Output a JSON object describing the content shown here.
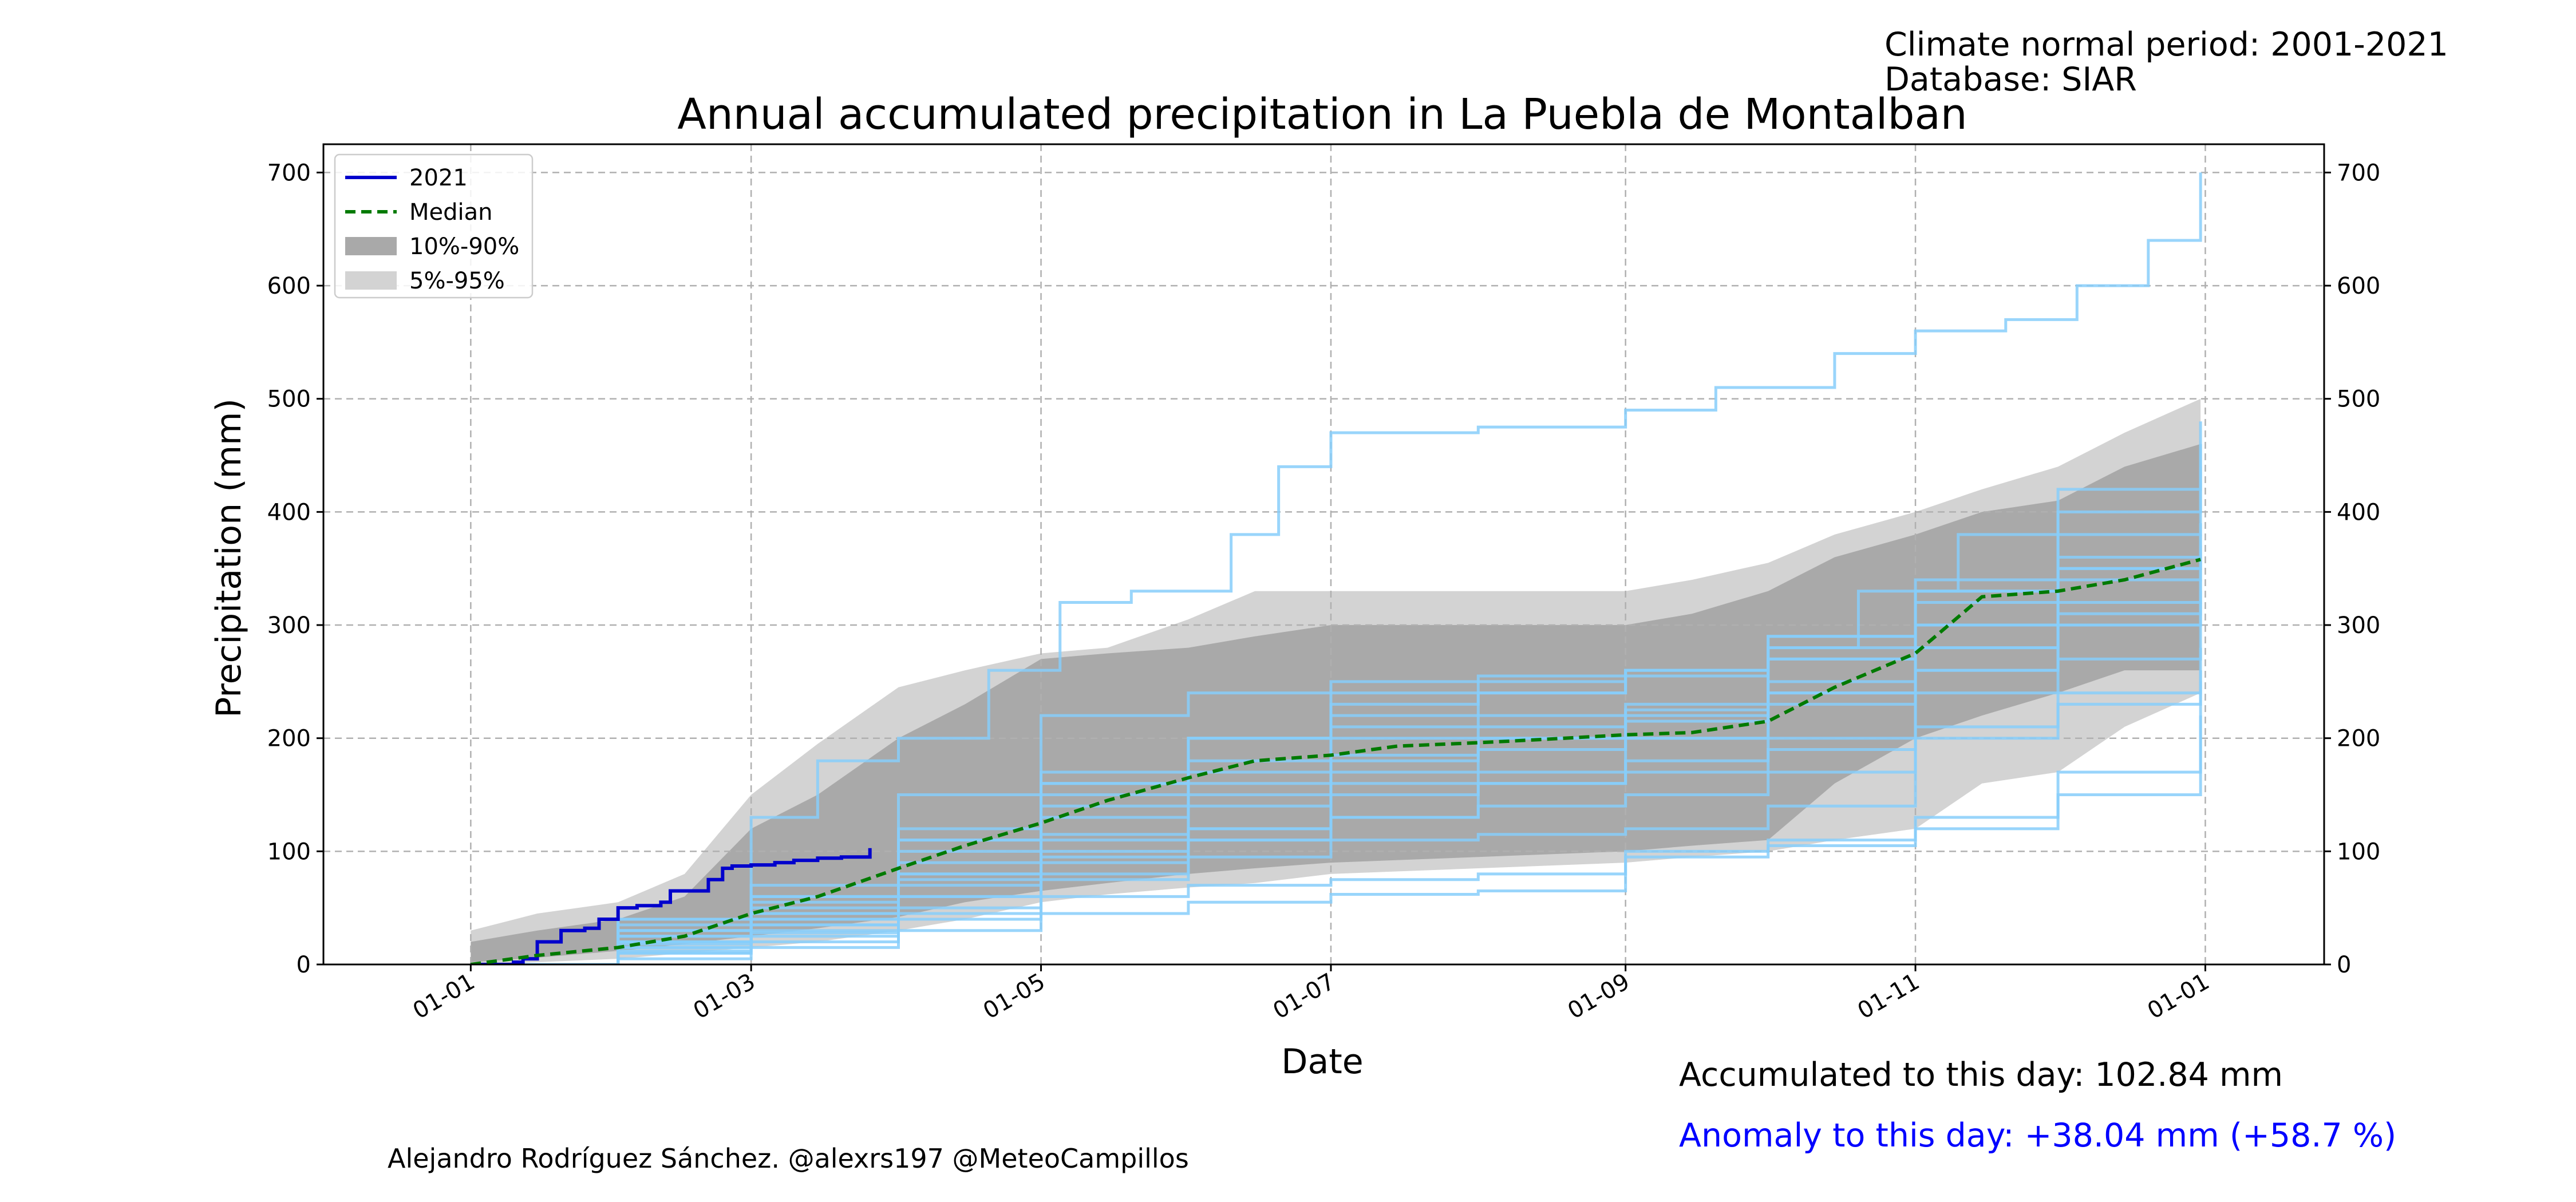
{
  "header": {
    "climate_period": "Climate normal period: 2001-2021",
    "database": "Database: SIAR"
  },
  "footer": {
    "accumulated": "Accumulated to this day: 102.84 mm",
    "anomaly": "Anomaly to this day: +38.04 mm (+58.7 %)",
    "credit": "Alejandro Rodríguez Sánchez. @alexrs197 @MeteoCampillos"
  },
  "colors": {
    "current": "#0000cc",
    "median": "#007a00",
    "band_10_90": "#a9a9a9",
    "band_5_95": "#d3d3d3",
    "years": "#87cefa",
    "anomaly_text": "#0000ff"
  },
  "chart_data": {
    "type": "line",
    "title": "Annual accumulated precipitation in La Puebla de Montalban",
    "xlabel": "Date",
    "ylabel": "Precipitation (mm)",
    "ylim": [
      0,
      725
    ],
    "yticks": [
      0,
      100,
      200,
      300,
      400,
      500,
      600,
      700
    ],
    "xlim": [
      "2020-12-01",
      "2022-01-26"
    ],
    "xticks": [
      {
        "date": "2021-01-01",
        "label": "01-01"
      },
      {
        "date": "2021-03-01",
        "label": "01-03"
      },
      {
        "date": "2021-05-01",
        "label": "01-05"
      },
      {
        "date": "2021-07-01",
        "label": "01-07"
      },
      {
        "date": "2021-09-01",
        "label": "01-09"
      },
      {
        "date": "2021-11-01",
        "label": "01-11"
      },
      {
        "date": "2022-01-01",
        "label": "01-01"
      }
    ],
    "grid": true,
    "legend_position": "top-left",
    "legend": [
      {
        "label": "2021",
        "kind": "line",
        "color": "#0000cc",
        "dash": false
      },
      {
        "label": "Median",
        "kind": "line",
        "color": "#007a00",
        "dash": true
      },
      {
        "label": "10%-90%",
        "kind": "patch",
        "color": "#a9a9a9"
      },
      {
        "label": "5%-95%",
        "kind": "patch",
        "color": "#d3d3d3"
      }
    ],
    "bands": [
      {
        "label": "5%-95%",
        "color": "#d3d3d3",
        "x": [
          "2021-01-01",
          "2021-01-15",
          "2021-02-01",
          "2021-02-15",
          "2021-03-01",
          "2021-03-15",
          "2021-04-01",
          "2021-04-15",
          "2021-05-01",
          "2021-05-15",
          "2021-06-01",
          "2021-06-15",
          "2021-07-01",
          "2021-08-01",
          "2021-09-01",
          "2021-09-15",
          "2021-10-01",
          "2021-10-15",
          "2021-11-01",
          "2021-11-15",
          "2021-12-01",
          "2021-12-15",
          "2021-12-31"
        ],
        "lower": [
          0,
          2,
          5,
          10,
          15,
          20,
          30,
          40,
          55,
          62,
          68,
          72,
          80,
          85,
          90,
          95,
          100,
          110,
          120,
          160,
          170,
          210,
          240
        ],
        "upper": [
          30,
          45,
          55,
          80,
          150,
          195,
          245,
          260,
          275,
          280,
          305,
          330,
          330,
          330,
          330,
          340,
          355,
          380,
          400,
          420,
          440,
          470,
          500
        ]
      },
      {
        "label": "10%-90%",
        "color": "#a9a9a9",
        "x": [
          "2021-01-01",
          "2021-01-15",
          "2021-02-01",
          "2021-02-15",
          "2021-03-01",
          "2021-03-15",
          "2021-04-01",
          "2021-04-15",
          "2021-05-01",
          "2021-05-15",
          "2021-06-01",
          "2021-06-15",
          "2021-07-01",
          "2021-08-01",
          "2021-09-01",
          "2021-09-15",
          "2021-10-01",
          "2021-10-15",
          "2021-11-01",
          "2021-11-15",
          "2021-12-01",
          "2021-12-15",
          "2021-12-31"
        ],
        "lower": [
          2,
          6,
          12,
          18,
          25,
          32,
          42,
          55,
          65,
          72,
          80,
          85,
          90,
          95,
          100,
          105,
          110,
          160,
          200,
          220,
          240,
          260,
          260
        ],
        "upper": [
          20,
          30,
          40,
          60,
          120,
          150,
          200,
          230,
          270,
          275,
          280,
          290,
          300,
          300,
          300,
          310,
          330,
          360,
          380,
          400,
          410,
          440,
          460
        ]
      }
    ],
    "series": [
      {
        "name": "2021",
        "color": "#0000cc",
        "dash": false,
        "x": [
          "2021-01-01",
          "2021-01-10",
          "2021-01-12",
          "2021-01-15",
          "2021-01-20",
          "2021-01-25",
          "2021-01-28",
          "2021-02-01",
          "2021-02-05",
          "2021-02-10",
          "2021-02-12",
          "2021-02-20",
          "2021-02-23",
          "2021-02-25",
          "2021-03-01",
          "2021-03-06",
          "2021-03-10",
          "2021-03-15",
          "2021-03-20",
          "2021-03-26"
        ],
        "y": [
          0,
          2,
          5,
          20,
          30,
          32,
          40,
          50,
          52,
          55,
          65,
          75,
          85,
          87,
          88,
          90,
          92,
          94,
          95,
          102.84
        ]
      },
      {
        "name": "Median",
        "color": "#007a00",
        "dash": true,
        "x": [
          "2021-01-01",
          "2021-01-15",
          "2021-02-01",
          "2021-02-15",
          "2021-03-01",
          "2021-03-15",
          "2021-04-01",
          "2021-04-15",
          "2021-05-01",
          "2021-05-15",
          "2021-06-01",
          "2021-06-15",
          "2021-07-01",
          "2021-07-15",
          "2021-08-01",
          "2021-08-15",
          "2021-09-01",
          "2021-09-15",
          "2021-10-01",
          "2021-10-15",
          "2021-11-01",
          "2021-11-15",
          "2021-12-01",
          "2021-12-15",
          "2021-12-31"
        ],
        "y": [
          0,
          8,
          15,
          25,
          45,
          60,
          85,
          105,
          125,
          145,
          165,
          180,
          185,
          193,
          196,
          199,
          203,
          205,
          215,
          245,
          275,
          325,
          330,
          340,
          358
        ]
      }
    ],
    "years": [
      {
        "x": [
          "2021-01-01",
          "2021-02-01",
          "2021-03-01",
          "2021-03-15",
          "2021-04-01",
          "2021-04-20",
          "2021-05-05",
          "2021-05-20",
          "2021-06-10",
          "2021-06-20",
          "2021-07-01",
          "2021-08-01",
          "2021-09-01",
          "2021-09-20",
          "2021-10-15",
          "2021-11-01",
          "2021-11-20",
          "2021-12-05",
          "2021-12-20",
          "2021-12-31"
        ],
        "y": [
          0,
          40,
          130,
          180,
          200,
          260,
          320,
          330,
          380,
          440,
          470,
          475,
          490,
          510,
          540,
          560,
          570,
          600,
          640,
          700
        ]
      },
      {
        "x": [
          "2021-01-01",
          "2021-02-01",
          "2021-03-01",
          "2021-04-01",
          "2021-05-01",
          "2021-06-01",
          "2021-07-01",
          "2021-08-01",
          "2021-09-01",
          "2021-10-01",
          "2021-10-20",
          "2021-11-10",
          "2021-12-01",
          "2021-12-31"
        ],
        "y": [
          0,
          25,
          45,
          80,
          95,
          110,
          130,
          160,
          200,
          280,
          330,
          380,
          420,
          460
        ]
      },
      {
        "x": [
          "2021-01-01",
          "2021-02-01",
          "2021-03-01",
          "2021-04-01",
          "2021-05-01",
          "2021-06-01",
          "2021-07-01",
          "2021-08-01",
          "2021-09-01",
          "2021-10-01",
          "2021-11-01",
          "2021-12-01",
          "2021-12-31"
        ],
        "y": [
          0,
          20,
          50,
          110,
          160,
          200,
          230,
          240,
          260,
          290,
          330,
          360,
          380
        ]
      },
      {
        "x": [
          "2021-01-01",
          "2021-02-01",
          "2021-03-01",
          "2021-04-01",
          "2021-05-01",
          "2021-06-01",
          "2021-07-01",
          "2021-08-01",
          "2021-09-01",
          "2021-10-01",
          "2021-11-01",
          "2021-12-01",
          "2021-12-31"
        ],
        "y": [
          0,
          15,
          30,
          60,
          80,
          120,
          170,
          200,
          220,
          240,
          260,
          300,
          340
        ]
      },
      {
        "x": [
          "2021-01-01",
          "2021-02-01",
          "2021-03-01",
          "2021-04-01",
          "2021-05-01",
          "2021-06-01",
          "2021-07-01",
          "2021-08-01",
          "2021-09-01",
          "2021-10-01",
          "2021-11-01",
          "2021-12-01",
          "2021-12-31"
        ],
        "y": [
          0,
          10,
          20,
          40,
          60,
          70,
          75,
          80,
          100,
          110,
          130,
          150,
          280
        ]
      },
      {
        "x": [
          "2021-01-01",
          "2021-02-01",
          "2021-03-01",
          "2021-04-01",
          "2021-05-01",
          "2021-06-01",
          "2021-07-01",
          "2021-08-01",
          "2021-09-01",
          "2021-10-01",
          "2021-11-01",
          "2021-12-01",
          "2021-12-31"
        ],
        "y": [
          0,
          5,
          15,
          30,
          45,
          55,
          62,
          65,
          95,
          105,
          120,
          170,
          220
        ]
      },
      {
        "x": [
          "2021-01-01",
          "2021-02-01",
          "2021-03-01",
          "2021-04-01",
          "2021-05-01",
          "2021-06-01",
          "2021-07-01",
          "2021-08-01",
          "2021-09-01",
          "2021-10-01",
          "2021-11-01",
          "2021-12-01",
          "2021-12-31"
        ],
        "y": [
          0,
          30,
          70,
          150,
          220,
          240,
          250,
          255,
          260,
          270,
          300,
          350,
          390
        ]
      },
      {
        "x": [
          "2021-01-01",
          "2021-02-01",
          "2021-03-01",
          "2021-04-01",
          "2021-05-01",
          "2021-06-01",
          "2021-07-01",
          "2021-08-01",
          "2021-09-01",
          "2021-10-01",
          "2021-11-01",
          "2021-12-01",
          "2021-12-31"
        ],
        "y": [
          0,
          20,
          40,
          80,
          130,
          160,
          180,
          190,
          200,
          230,
          280,
          320,
          360
        ]
      },
      {
        "x": [
          "2021-01-01",
          "2021-02-01",
          "2021-03-01",
          "2021-04-01",
          "2021-05-01",
          "2021-06-01",
          "2021-07-01",
          "2021-08-01",
          "2021-09-01",
          "2021-10-01",
          "2021-11-01",
          "2021-12-01",
          "2021-12-31"
        ],
        "y": [
          0,
          35,
          60,
          120,
          170,
          200,
          210,
          220,
          230,
          270,
          330,
          400,
          480
        ]
      },
      {
        "x": [
          "2021-01-01",
          "2021-02-01",
          "2021-03-01",
          "2021-04-01",
          "2021-05-01",
          "2021-06-01",
          "2021-07-01",
          "2021-08-01",
          "2021-09-01",
          "2021-10-01",
          "2021-11-01",
          "2021-12-01",
          "2021-12-31"
        ],
        "y": [
          0,
          25,
          45,
          90,
          140,
          170,
          200,
          210,
          225,
          250,
          280,
          310,
          330
        ]
      },
      {
        "x": [
          "2021-01-01",
          "2021-02-01",
          "2021-03-01",
          "2021-04-01",
          "2021-05-01",
          "2021-06-01",
          "2021-07-01",
          "2021-08-01",
          "2021-09-01",
          "2021-10-01",
          "2021-11-01",
          "2021-12-01",
          "2021-12-31"
        ],
        "y": [
          0,
          15,
          35,
          70,
          110,
          140,
          160,
          170,
          180,
          200,
          240,
          270,
          300
        ]
      },
      {
        "x": [
          "2021-01-01",
          "2021-02-01",
          "2021-03-01",
          "2021-04-01",
          "2021-05-01",
          "2021-06-01",
          "2021-07-01",
          "2021-08-01",
          "2021-09-01",
          "2021-10-01",
          "2021-11-01",
          "2021-12-01",
          "2021-12-31"
        ],
        "y": [
          0,
          10,
          25,
          50,
          90,
          110,
          130,
          140,
          150,
          170,
          210,
          240,
          260
        ]
      },
      {
        "x": [
          "2021-01-01",
          "2021-02-01",
          "2021-03-01",
          "2021-04-01",
          "2021-05-01",
          "2021-06-01",
          "2021-07-01",
          "2021-08-01",
          "2021-09-01",
          "2021-10-01",
          "2021-11-01",
          "2021-12-01",
          "2021-12-31"
        ],
        "y": [
          0,
          40,
          55,
          100,
          160,
          200,
          240,
          250,
          255,
          290,
          340,
          380,
          440
        ]
      },
      {
        "x": [
          "2021-01-01",
          "2021-02-01",
          "2021-03-01",
          "2021-04-01",
          "2021-05-01",
          "2021-06-01",
          "2021-07-01",
          "2021-08-01",
          "2021-09-01",
          "2021-10-01",
          "2021-11-01",
          "2021-12-01",
          "2021-12-31"
        ],
        "y": [
          0,
          20,
          35,
          60,
          100,
          120,
          150,
          160,
          170,
          190,
          260,
          300,
          320
        ]
      },
      {
        "x": [
          "2021-01-01",
          "2021-02-01",
          "2021-03-01",
          "2021-04-01",
          "2021-05-01",
          "2021-06-01",
          "2021-07-01",
          "2021-08-01",
          "2021-09-01",
          "2021-10-01",
          "2021-11-01",
          "2021-12-01",
          "2021-12-31"
        ],
        "y": [
          0,
          12,
          28,
          45,
          75,
          95,
          110,
          115,
          120,
          140,
          200,
          230,
          250
        ]
      },
      {
        "x": [
          "2021-01-01",
          "2021-02-01",
          "2021-03-01",
          "2021-04-01",
          "2021-05-01",
          "2021-06-01",
          "2021-07-01",
          "2021-08-01",
          "2021-09-01",
          "2021-10-01",
          "2021-11-01",
          "2021-12-01",
          "2021-12-31"
        ],
        "y": [
          0,
          30,
          60,
          110,
          150,
          180,
          220,
          240,
          260,
          280,
          320,
          350,
          370
        ]
      },
      {
        "x": [
          "2021-01-01",
          "2021-02-01",
          "2021-03-01",
          "2021-04-01",
          "2021-05-01",
          "2021-06-01",
          "2021-07-01",
          "2021-08-01",
          "2021-09-01",
          "2021-10-01",
          "2021-11-01",
          "2021-12-01",
          "2021-12-31"
        ],
        "y": [
          0,
          18,
          40,
          75,
          115,
          150,
          185,
          200,
          215,
          240,
          300,
          340,
          350
        ]
      }
    ]
  }
}
